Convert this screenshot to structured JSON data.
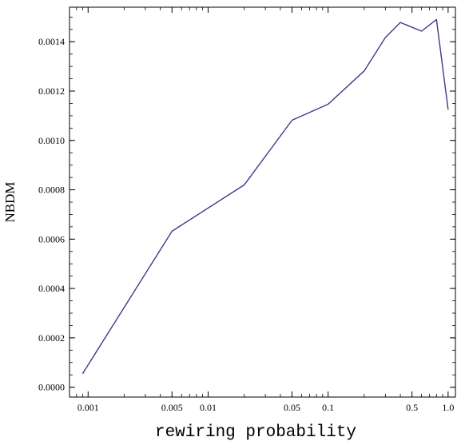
{
  "chart_data": {
    "type": "line",
    "xscale": "log",
    "xlabel": "rewiring probability",
    "ylabel": "NBDM",
    "xlim": [
      0.0007,
      1.15
    ],
    "ylim": [
      -4e-05,
      0.00154
    ],
    "x_ticks": [
      0.001,
      0.005,
      0.01,
      0.05,
      0.1,
      0.5,
      1.0
    ],
    "x_tick_labels": [
      "0.001",
      "0.005",
      "0.01",
      "0.05",
      "0.1",
      "0.5",
      "1.0"
    ],
    "y_ticks": [
      0,
      0.0002,
      0.0004,
      0.0006,
      0.0008,
      0.001,
      0.0012,
      0.0014
    ],
    "y_tick_labels": [
      "0.0000",
      "0.0002",
      "0.0004",
      "0.0006",
      "0.0008",
      "0.0010",
      "0.0012",
      "0.0014"
    ],
    "series": [
      {
        "color": "#3b3b8c",
        "x": [
          0.0009,
          0.005,
          0.02,
          0.05,
          0.1,
          0.2,
          0.3,
          0.4,
          0.6,
          0.8,
          1.0
        ],
        "y": [
          5.5e-05,
          0.000632,
          0.00082,
          0.001082,
          0.001147,
          0.001282,
          0.001417,
          0.001478,
          0.001443,
          0.00149,
          0.001125
        ]
      }
    ],
    "grid": false
  }
}
